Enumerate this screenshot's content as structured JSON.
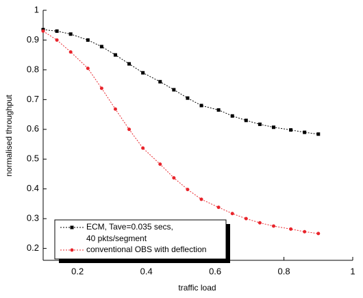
{
  "chart_data": {
    "type": "line",
    "xlabel": "traffic load",
    "ylabel": "normalised throughput",
    "x": [
      0.1,
      0.14,
      0.18,
      0.23,
      0.27,
      0.31,
      0.35,
      0.39,
      0.44,
      0.48,
      0.52,
      0.56,
      0.61,
      0.65,
      0.69,
      0.73,
      0.77,
      0.82,
      0.86,
      0.9
    ],
    "series": [
      {
        "name": "ECM, Tave=0.035 secs, 40 pkts/segment",
        "color": "#000000",
        "marker": "square",
        "values": [
          0.935,
          0.93,
          0.92,
          0.9,
          0.878,
          0.85,
          0.82,
          0.79,
          0.76,
          0.733,
          0.705,
          0.68,
          0.665,
          0.645,
          0.63,
          0.617,
          0.607,
          0.598,
          0.59,
          0.584
        ]
      },
      {
        "name": "conventional OBS with deflection",
        "color": "#e8242b",
        "marker": "circle",
        "values": [
          0.93,
          0.9,
          0.86,
          0.805,
          0.738,
          0.668,
          0.6,
          0.537,
          0.483,
          0.437,
          0.398,
          0.365,
          0.338,
          0.317,
          0.3,
          0.286,
          0.275,
          0.265,
          0.256,
          0.25
        ]
      }
    ],
    "xlim": [
      0.1,
      1.0
    ],
    "xticks": [
      0.2,
      0.4,
      0.6,
      0.8,
      1.0
    ],
    "ylim": [
      0.16,
      1.0
    ],
    "yticks": [
      0.2,
      0.3,
      0.4,
      0.5,
      0.6,
      0.7,
      0.8,
      0.9,
      1.0
    ],
    "grid": false
  }
}
